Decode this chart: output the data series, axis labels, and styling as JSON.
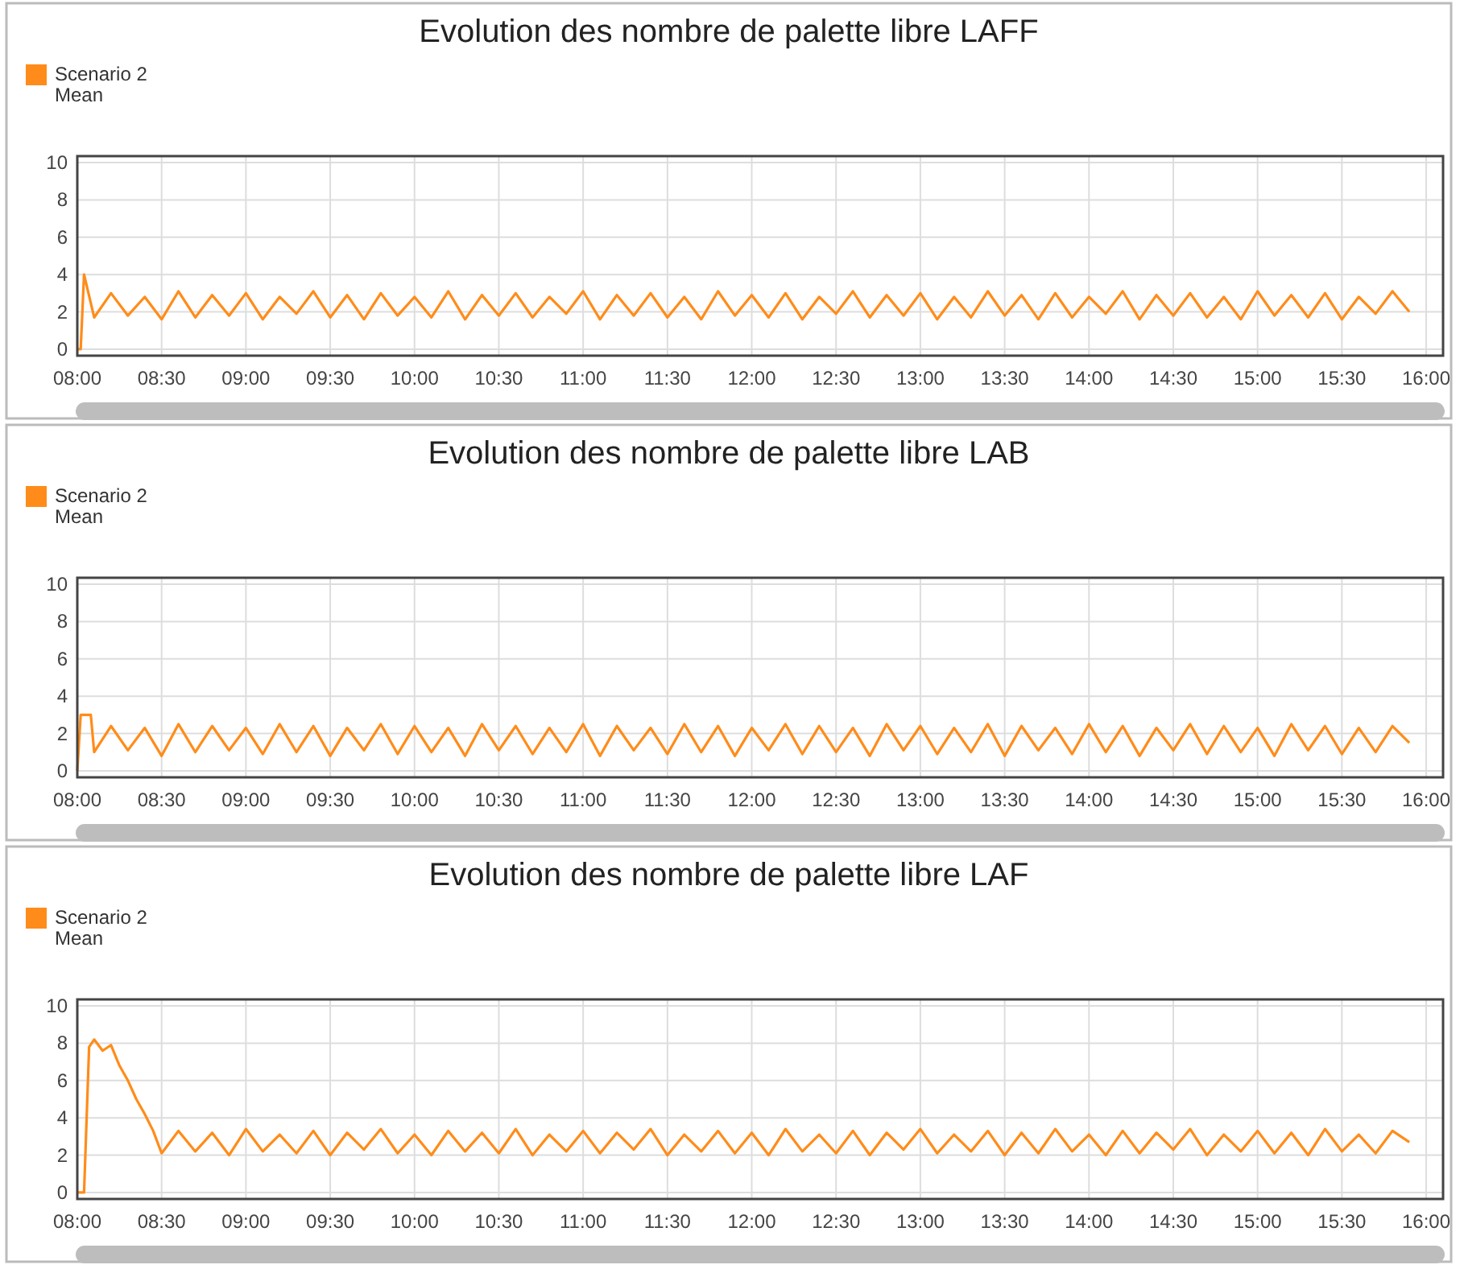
{
  "chart_data": [
    {
      "type": "line",
      "title": "Evolution des nombre de palette libre LAFF",
      "legend": "top left",
      "grid": true,
      "xlim": [
        8,
        16.1
      ],
      "ylim": [
        -0.35,
        10.35
      ],
      "yticks": [
        0,
        2,
        4,
        6,
        8,
        10
      ],
      "xticks": [
        {
          "value": 8,
          "label": "08:00"
        },
        {
          "value": 8.5,
          "label": "08:30"
        },
        {
          "value": 9,
          "label": "09:00"
        },
        {
          "value": 9.5,
          "label": "09:30"
        },
        {
          "value": 10,
          "label": "10:00"
        },
        {
          "value": 10.5,
          "label": "10:30"
        },
        {
          "value": 11,
          "label": "11:00"
        },
        {
          "value": 11.5,
          "label": "11:30"
        },
        {
          "value": 12,
          "label": "12:00"
        },
        {
          "value": 12.5,
          "label": "12:30"
        },
        {
          "value": 13,
          "label": "13:00"
        },
        {
          "value": 13.5,
          "label": "13:30"
        },
        {
          "value": 14,
          "label": "14:00"
        },
        {
          "value": 14.5,
          "label": "14:30"
        },
        {
          "value": 15,
          "label": "15:00"
        },
        {
          "value": 15.5,
          "label": "15:30"
        },
        {
          "value": 16,
          "label": "16:00"
        }
      ],
      "series": [
        {
          "name": "Scenario 2\nMean",
          "color": "#ff8c1a",
          "x": [
            8,
            8.02,
            8.04,
            8.1,
            8.2,
            8.3,
            8.4,
            8.5,
            8.6,
            8.7,
            8.8,
            8.9,
            9.0,
            9.1,
            9.2,
            9.3,
            9.4,
            9.5,
            9.6,
            9.7,
            9.8,
            9.9,
            10.0,
            10.1,
            10.2,
            10.3,
            10.4,
            10.5,
            10.6,
            10.7,
            10.8,
            10.9,
            11.0,
            11.1,
            11.2,
            11.3,
            11.4,
            11.5,
            11.6,
            11.7,
            11.8,
            11.9,
            12.0,
            12.1,
            12.2,
            12.3,
            12.4,
            12.5,
            12.6,
            12.7,
            12.8,
            12.9,
            13.0,
            13.1,
            13.2,
            13.3,
            13.4,
            13.5,
            13.6,
            13.7,
            13.8,
            13.9,
            14.0,
            14.1,
            14.2,
            14.3,
            14.4,
            14.5,
            14.6,
            14.7,
            14.8,
            14.9,
            15.0,
            15.1,
            15.2,
            15.3,
            15.4,
            15.5,
            15.6,
            15.7,
            15.8,
            15.9
          ],
          "values": [
            0,
            0,
            4.0,
            1.7,
            3.0,
            1.8,
            2.8,
            1.6,
            3.1,
            1.7,
            2.9,
            1.8,
            3.0,
            1.6,
            2.8,
            1.9,
            3.1,
            1.7,
            2.9,
            1.6,
            3.0,
            1.8,
            2.8,
            1.7,
            3.1,
            1.6,
            2.9,
            1.8,
            3.0,
            1.7,
            2.8,
            1.9,
            3.1,
            1.6,
            2.9,
            1.8,
            3.0,
            1.7,
            2.8,
            1.6,
            3.1,
            1.8,
            2.9,
            1.7,
            3.0,
            1.6,
            2.8,
            1.9,
            3.1,
            1.7,
            2.9,
            1.8,
            3.0,
            1.6,
            2.8,
            1.7,
            3.1,
            1.8,
            2.9,
            1.6,
            3.0,
            1.7,
            2.8,
            1.9,
            3.1,
            1.6,
            2.9,
            1.8,
            3.0,
            1.7,
            2.8,
            1.6,
            3.1,
            1.8,
            2.9,
            1.7,
            3.0,
            1.6,
            2.8,
            1.9,
            3.1,
            2.0
          ]
        }
      ]
    },
    {
      "type": "line",
      "title": "Evolution des nombre de palette libre LAB",
      "legend": "top left",
      "grid": true,
      "xlim": [
        8,
        16.1
      ],
      "ylim": [
        -0.35,
        10.35
      ],
      "yticks": [
        0,
        2,
        4,
        6,
        8,
        10
      ],
      "xticks": [
        {
          "value": 8,
          "label": "08:00"
        },
        {
          "value": 8.5,
          "label": "08:30"
        },
        {
          "value": 9,
          "label": "09:00"
        },
        {
          "value": 9.5,
          "label": "09:30"
        },
        {
          "value": 10,
          "label": "10:00"
        },
        {
          "value": 10.5,
          "label": "10:30"
        },
        {
          "value": 11,
          "label": "11:00"
        },
        {
          "value": 11.5,
          "label": "11:30"
        },
        {
          "value": 12,
          "label": "12:00"
        },
        {
          "value": 12.5,
          "label": "12:30"
        },
        {
          "value": 13,
          "label": "13:00"
        },
        {
          "value": 13.5,
          "label": "13:30"
        },
        {
          "value": 14,
          "label": "14:00"
        },
        {
          "value": 14.5,
          "label": "14:30"
        },
        {
          "value": 15,
          "label": "15:00"
        },
        {
          "value": 15.5,
          "label": "15:30"
        },
        {
          "value": 16,
          "label": "16:00"
        }
      ],
      "series": [
        {
          "name": "Scenario 2\nMean",
          "color": "#ff8c1a",
          "x": [
            8,
            8.02,
            8.04,
            8.08,
            8.1,
            8.2,
            8.3,
            8.4,
            8.5,
            8.6,
            8.7,
            8.8,
            8.9,
            9.0,
            9.1,
            9.2,
            9.3,
            9.4,
            9.5,
            9.6,
            9.7,
            9.8,
            9.9,
            10.0,
            10.1,
            10.2,
            10.3,
            10.4,
            10.5,
            10.6,
            10.7,
            10.8,
            10.9,
            11.0,
            11.1,
            11.2,
            11.3,
            11.4,
            11.5,
            11.6,
            11.7,
            11.8,
            11.9,
            12.0,
            12.1,
            12.2,
            12.3,
            12.4,
            12.5,
            12.6,
            12.7,
            12.8,
            12.9,
            13.0,
            13.1,
            13.2,
            13.3,
            13.4,
            13.5,
            13.6,
            13.7,
            13.8,
            13.9,
            14.0,
            14.1,
            14.2,
            14.3,
            14.4,
            14.5,
            14.6,
            14.7,
            14.8,
            14.9,
            15.0,
            15.1,
            15.2,
            15.3,
            15.4,
            15.5,
            15.6,
            15.7,
            15.8,
            15.9
          ],
          "values": [
            0,
            3.0,
            3.0,
            3.0,
            1.0,
            2.4,
            1.1,
            2.3,
            0.8,
            2.5,
            1.0,
            2.4,
            1.1,
            2.3,
            0.9,
            2.5,
            1.0,
            2.4,
            0.8,
            2.3,
            1.1,
            2.5,
            0.9,
            2.4,
            1.0,
            2.3,
            0.8,
            2.5,
            1.1,
            2.4,
            0.9,
            2.3,
            1.0,
            2.5,
            0.8,
            2.4,
            1.1,
            2.3,
            0.9,
            2.5,
            1.0,
            2.4,
            0.8,
            2.3,
            1.1,
            2.5,
            0.9,
            2.4,
            1.0,
            2.3,
            0.8,
            2.5,
            1.1,
            2.4,
            0.9,
            2.3,
            1.0,
            2.5,
            0.8,
            2.4,
            1.1,
            2.3,
            0.9,
            2.5,
            1.0,
            2.4,
            0.8,
            2.3,
            1.1,
            2.5,
            0.9,
            2.4,
            1.0,
            2.3,
            0.8,
            2.5,
            1.1,
            2.4,
            0.9,
            2.3,
            1.0,
            2.4,
            1.5
          ]
        }
      ]
    },
    {
      "type": "line",
      "title": "Evolution des nombre de palette libre LAF",
      "legend": "top left",
      "grid": true,
      "xlim": [
        8,
        16.1
      ],
      "ylim": [
        -0.35,
        10.35
      ],
      "yticks": [
        0,
        2,
        4,
        6,
        8,
        10
      ],
      "xticks": [
        {
          "value": 8,
          "label": "08:00"
        },
        {
          "value": 8.5,
          "label": "08:30"
        },
        {
          "value": 9,
          "label": "09:00"
        },
        {
          "value": 9.5,
          "label": "09:30"
        },
        {
          "value": 10,
          "label": "10:00"
        },
        {
          "value": 10.5,
          "label": "10:30"
        },
        {
          "value": 11,
          "label": "11:00"
        },
        {
          "value": 11.5,
          "label": "11:30"
        },
        {
          "value": 12,
          "label": "12:00"
        },
        {
          "value": 12.5,
          "label": "12:30"
        },
        {
          "value": 13,
          "label": "13:00"
        },
        {
          "value": 13.5,
          "label": "13:30"
        },
        {
          "value": 14,
          "label": "14:00"
        },
        {
          "value": 14.5,
          "label": "14:30"
        },
        {
          "value": 15,
          "label": "15:00"
        },
        {
          "value": 15.5,
          "label": "15:30"
        },
        {
          "value": 16,
          "label": "16:00"
        }
      ],
      "series": [
        {
          "name": "Scenario 2\nMean",
          "color": "#ff8c1a",
          "x": [
            8,
            8.04,
            8.07,
            8.1,
            8.15,
            8.2,
            8.25,
            8.3,
            8.35,
            8.4,
            8.45,
            8.5,
            8.6,
            8.7,
            8.8,
            8.9,
            9.0,
            9.1,
            9.2,
            9.3,
            9.4,
            9.5,
            9.6,
            9.7,
            9.8,
            9.9,
            10.0,
            10.1,
            10.2,
            10.3,
            10.4,
            10.5,
            10.6,
            10.7,
            10.8,
            10.9,
            11.0,
            11.1,
            11.2,
            11.3,
            11.4,
            11.5,
            11.6,
            11.7,
            11.8,
            11.9,
            12.0,
            12.1,
            12.2,
            12.3,
            12.4,
            12.5,
            12.6,
            12.7,
            12.8,
            12.9,
            13.0,
            13.1,
            13.2,
            13.3,
            13.4,
            13.5,
            13.6,
            13.7,
            13.8,
            13.9,
            14.0,
            14.1,
            14.2,
            14.3,
            14.4,
            14.5,
            14.6,
            14.7,
            14.8,
            14.9,
            15.0,
            15.1,
            15.2,
            15.3,
            15.4,
            15.5,
            15.6,
            15.7,
            15.8,
            15.9
          ],
          "values": [
            0,
            0,
            7.8,
            8.2,
            7.6,
            7.9,
            6.8,
            6.0,
            5.0,
            4.2,
            3.3,
            2.1,
            3.3,
            2.2,
            3.2,
            2.0,
            3.4,
            2.2,
            3.1,
            2.1,
            3.3,
            2.0,
            3.2,
            2.3,
            3.4,
            2.1,
            3.1,
            2.0,
            3.3,
            2.2,
            3.2,
            2.1,
            3.4,
            2.0,
            3.1,
            2.2,
            3.3,
            2.1,
            3.2,
            2.3,
            3.4,
            2.0,
            3.1,
            2.2,
            3.3,
            2.1,
            3.2,
            2.0,
            3.4,
            2.2,
            3.1,
            2.1,
            3.3,
            2.0,
            3.2,
            2.3,
            3.4,
            2.1,
            3.1,
            2.2,
            3.3,
            2.0,
            3.2,
            2.1,
            3.4,
            2.2,
            3.1,
            2.0,
            3.3,
            2.1,
            3.2,
            2.3,
            3.4,
            2.0,
            3.1,
            2.2,
            3.3,
            2.1,
            3.2,
            2.0,
            3.4,
            2.2,
            3.1,
            2.1,
            3.3,
            2.7
          ]
        }
      ]
    }
  ]
}
